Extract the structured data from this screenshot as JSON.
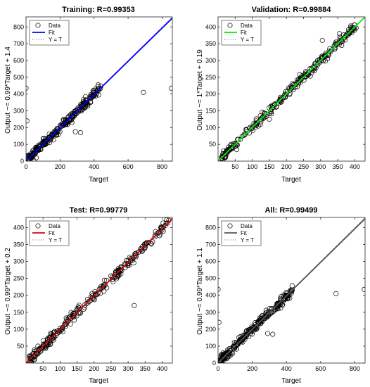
{
  "chart_data": [
    {
      "type": "scatter",
      "title": "Training: R=0.99353",
      "xlabel": "Target",
      "ylabel": "Output ~= 0.99*Target + 1.4",
      "xlim": [
        0,
        860
      ],
      "ylim": [
        0,
        860
      ],
      "xticks": [
        0,
        200,
        400,
        600,
        800
      ],
      "yticks": [
        0,
        100,
        200,
        300,
        400,
        500,
        600,
        700,
        800
      ],
      "fit_slope": 0.99,
      "fit_intercept": 1.4,
      "fit_color": "#0000ff",
      "legend": [
        "Data",
        "Fit",
        "Y = T"
      ],
      "legend_position": "top-left",
      "grid": false,
      "outliers": [
        [
          0,
          435
        ],
        [
          5,
          240
        ],
        [
          290,
          175
        ],
        [
          320,
          170
        ],
        [
          690,
          410
        ],
        [
          855,
          435
        ],
        [
          30,
          30
        ],
        [
          60,
          20
        ]
      ],
      "cloud": {
        "x_from": 10,
        "x_to": 440,
        "spread": 18
      }
    },
    {
      "type": "scatter",
      "title": "Validation: R=0.99884",
      "xlabel": "Target",
      "ylabel": "Output ~= 1*Target + 0.19",
      "xlim": [
        0,
        430
      ],
      "ylim": [
        0,
        430
      ],
      "xticks": [
        50,
        100,
        150,
        200,
        250,
        300,
        350,
        400
      ],
      "yticks": [
        50,
        100,
        150,
        200,
        250,
        300,
        350,
        400
      ],
      "fit_slope": 1.0,
      "fit_intercept": 0.19,
      "fit_color": "#00ee00",
      "legend": [
        "Data",
        "Fit",
        "Y = T"
      ],
      "legend_position": "top-left",
      "grid": false,
      "outliers": [
        [
          355,
          380
        ],
        [
          305,
          360
        ],
        [
          150,
          125
        ],
        [
          320,
          305
        ]
      ],
      "cloud": {
        "x_from": 10,
        "x_to": 410,
        "spread": 9
      }
    },
    {
      "type": "scatter",
      "title": "Test: R=0.99779",
      "xlabel": "Target",
      "ylabel": "Output ~= 0.99*Target + 0.2",
      "xlim": [
        0,
        430
      ],
      "ylim": [
        0,
        430
      ],
      "xticks": [
        50,
        100,
        150,
        200,
        250,
        300,
        350,
        400
      ],
      "yticks": [
        50,
        100,
        150,
        200,
        250,
        300,
        350,
        400
      ],
      "fit_slope": 0.99,
      "fit_intercept": 0.2,
      "fit_color": "#dd0000",
      "legend": [
        "Data",
        "Fit",
        "Y = T"
      ],
      "legend_position": "top-left",
      "grid": false,
      "outliers": [
        [
          318,
          170
        ],
        [
          270,
          255
        ],
        [
          35,
          50
        ],
        [
          60,
          48
        ]
      ],
      "cloud": {
        "x_from": 10,
        "x_to": 420,
        "spread": 9
      }
    },
    {
      "type": "scatter",
      "title": "All: R=0.99499",
      "xlabel": "Target",
      "ylabel": "Output ~= 0.99*Target + 1.1",
      "xlim": [
        0,
        860
      ],
      "ylim": [
        0,
        860
      ],
      "xticks": [
        0,
        200,
        400,
        600,
        800
      ],
      "yticks": [
        0,
        100,
        200,
        300,
        400,
        500,
        600,
        700,
        800
      ],
      "fit_slope": 0.99,
      "fit_intercept": 1.1,
      "fit_color": "#555555",
      "legend": [
        "Data",
        "Fit",
        "Y = T"
      ],
      "legend_position": "top-left",
      "grid": false,
      "outliers": [
        [
          0,
          435
        ],
        [
          5,
          240
        ],
        [
          290,
          175
        ],
        [
          320,
          170
        ],
        [
          690,
          410
        ],
        [
          855,
          435
        ],
        [
          30,
          30
        ]
      ],
      "cloud": {
        "x_from": 10,
        "x_to": 440,
        "spread": 18
      }
    }
  ]
}
